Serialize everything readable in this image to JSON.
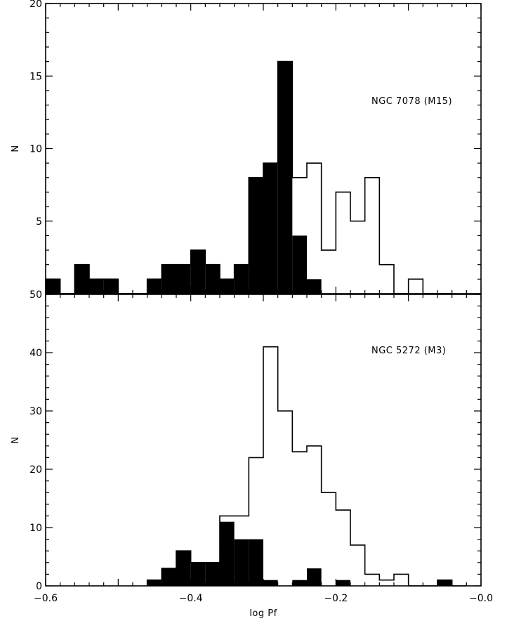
{
  "chart_data": [
    {
      "type": "bar",
      "panel": "top",
      "annotation": "NGC 7078 (M15)",
      "xlabel": "",
      "ylabel": "N",
      "xlim": [
        -0.6,
        0.0
      ],
      "ylim": [
        0,
        20
      ],
      "y_ticks": [
        "5",
        "10",
        "15",
        "20"
      ],
      "bin_width": 0.02,
      "bin_starts": [
        -0.6,
        -0.58,
        -0.56,
        -0.54,
        -0.52,
        -0.5,
        -0.48,
        -0.46,
        -0.44,
        -0.42,
        -0.4,
        -0.38,
        -0.36,
        -0.34,
        -0.32,
        -0.3,
        -0.28,
        -0.26,
        -0.24,
        -0.22,
        -0.2,
        -0.18,
        -0.16,
        -0.14,
        -0.12,
        -0.1,
        -0.08,
        -0.06
      ],
      "series": [
        {
          "style": "filled",
          "values": [
            1,
            0,
            2,
            1,
            1,
            0,
            0,
            1,
            2,
            2,
            3,
            2,
            1,
            2,
            8,
            9,
            16,
            4,
            1,
            0,
            0,
            0,
            0,
            0,
            0,
            0,
            0,
            0
          ]
        },
        {
          "style": "outline",
          "values": [
            1,
            0,
            2,
            1,
            1,
            0,
            0,
            1,
            2,
            2,
            3,
            2,
            1,
            2,
            8,
            9,
            16,
            8,
            9,
            3,
            7,
            5,
            8,
            2,
            0,
            1,
            0,
            0
          ]
        }
      ]
    },
    {
      "type": "bar",
      "panel": "bottom",
      "annotation": "NGC 5272 (M3)",
      "xlabel": "log Pf",
      "ylabel": "N",
      "xlim": [
        -0.6,
        0.0
      ],
      "ylim": [
        0,
        50
      ],
      "x_ticks": [
        "−0.6",
        "−0.4",
        "−0.2",
        "−0.0"
      ],
      "y_ticks": [
        "0",
        "10",
        "20",
        "30",
        "40",
        "50"
      ],
      "bin_width": 0.02,
      "bin_starts": [
        -0.46,
        -0.44,
        -0.42,
        -0.4,
        -0.38,
        -0.36,
        -0.34,
        -0.32,
        -0.3,
        -0.28,
        -0.26,
        -0.24,
        -0.22,
        -0.2,
        -0.18,
        -0.16,
        -0.14,
        -0.12,
        -0.1,
        -0.08,
        -0.06,
        -0.04
      ],
      "series": [
        {
          "style": "filled",
          "values": [
            1,
            3,
            6,
            4,
            4,
            11,
            8,
            8,
            1,
            0,
            1,
            3,
            0,
            1,
            0,
            0,
            0,
            0,
            0,
            0,
            1,
            0
          ]
        },
        {
          "style": "outline",
          "values": [
            1,
            3,
            6,
            4,
            4,
            12,
            12,
            22,
            41,
            30,
            23,
            24,
            16,
            13,
            7,
            2,
            1,
            2,
            0,
            0,
            1,
            0
          ]
        }
      ]
    }
  ]
}
